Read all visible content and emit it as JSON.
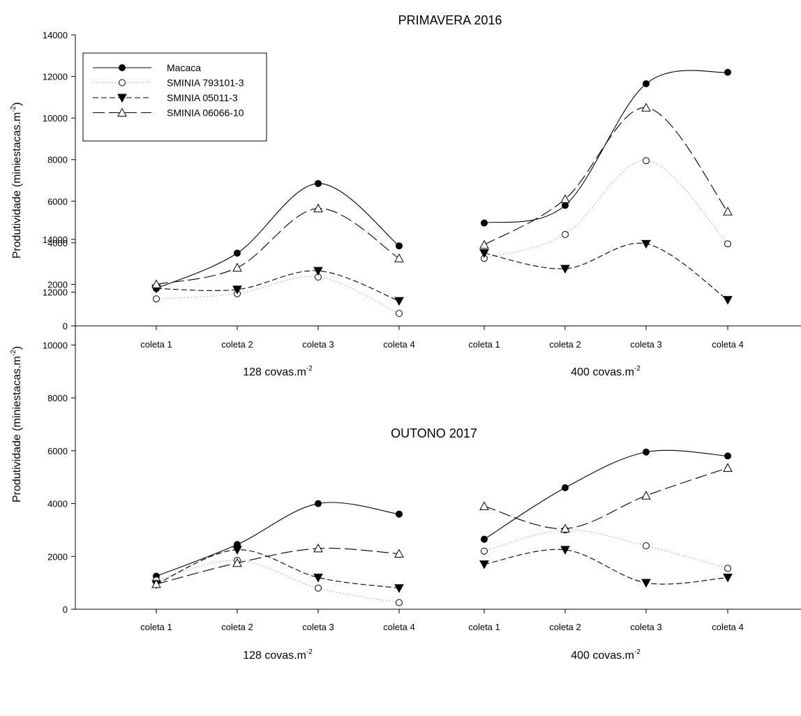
{
  "chart_data": [
    {
      "type": "line",
      "title": "PRIMAVERA 2016",
      "ylabel": "Produtividade (miniestacas.m",
      "ylabel_sup": "-2",
      "ylabel_end": ")",
      "ylim": [
        0,
        14000
      ],
      "yticks": [
        "0",
        "2000",
        "4000",
        "6000",
        "8000",
        "10000",
        "12000",
        "14000"
      ],
      "categories": [
        "coleta 1",
        "coleta 2",
        "coleta 3",
        "coleta 4",
        "coleta 1",
        "coleta 2",
        "coleta 3",
        "coleta 4"
      ],
      "groups": [
        {
          "label": "128 covas.m",
          "sup": "-2"
        },
        {
          "label": "400 covas.m",
          "sup": "-2"
        }
      ],
      "legend": "top-left",
      "grid": false,
      "series": [
        {
          "name": "Macaca",
          "marker": "circle-filled",
          "line": "solid",
          "values": [
            1800,
            3500,
            6850,
            3850,
            4950,
            5800,
            11650,
            12200
          ]
        },
        {
          "name": "SMINIA 793101-3",
          "marker": "circle-open",
          "line": "dotted",
          "values": [
            1300,
            1550,
            2350,
            600,
            3250,
            4400,
            7950,
            3950
          ]
        },
        {
          "name": "SMINIA 05011-3",
          "marker": "triangle-down-filled",
          "line": "short-dash",
          "values": [
            1800,
            1750,
            2650,
            1200,
            3500,
            2750,
            3950,
            1250
          ]
        },
        {
          "name": "SMINIA 06066-10",
          "marker": "triangle-up-open",
          "line": "long-dash",
          "values": [
            2000,
            2800,
            5650,
            3250,
            3900,
            6100,
            10500,
            5500
          ]
        }
      ]
    },
    {
      "type": "line",
      "title": "OUTONO 2017",
      "ylabel": "Produtividade (miniestacas.m",
      "ylabel_sup": "-2",
      "ylabel_end": ")",
      "ylim": [
        0,
        14000
      ],
      "yticks": [
        "0",
        "2000",
        "4000",
        "6000",
        "8000",
        "10000",
        "12000",
        "14000"
      ],
      "categories": [
        "coleta 1",
        "coleta 2",
        "coleta 3",
        "coleta 4",
        "coleta 1",
        "coleta 2",
        "coleta 3",
        "coleta 4"
      ],
      "groups": [
        {
          "label": "128 covas.m",
          "sup": "-2"
        },
        {
          "label": "400 covas.m",
          "sup": "-2"
        }
      ],
      "legend": "none",
      "grid": false,
      "series": [
        {
          "name": "Macaca",
          "marker": "circle-filled",
          "line": "solid",
          "values": [
            1250,
            2450,
            4000,
            3600,
            2650,
            4600,
            5950,
            5800
          ]
        },
        {
          "name": "SMINIA 793101-3",
          "marker": "circle-open",
          "line": "dotted",
          "values": [
            1100,
            1850,
            800,
            250,
            2200,
            3000,
            2400,
            1550
          ]
        },
        {
          "name": "SMINIA 05011-3",
          "marker": "triangle-down-filled",
          "line": "short-dash",
          "values": [
            950,
            2250,
            1200,
            800,
            1700,
            2250,
            1000,
            1200
          ]
        },
        {
          "name": "SMINIA 06066-10",
          "marker": "triangle-up-open",
          "line": "long-dash",
          "values": [
            950,
            1750,
            2300,
            2100,
            3900,
            3050,
            4300,
            5350
          ]
        }
      ]
    }
  ]
}
